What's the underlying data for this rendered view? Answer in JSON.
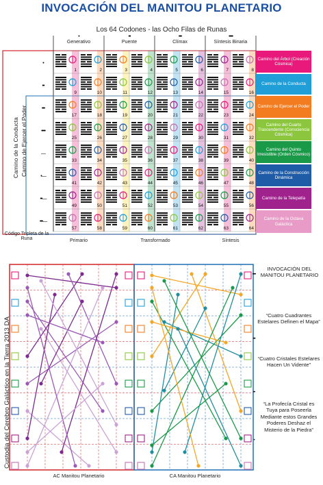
{
  "header": {
    "title": "INVOCACIÓN DEL MANITOU PLANETARIO",
    "subtitle": "Los 64 Codones - las Ocho Filas de Runas"
  },
  "table": {
    "columns": [
      {
        "dots": "•",
        "label": "Generativo"
      },
      {
        "dots": "••",
        "label": "Puente"
      },
      {
        "dots": "•••",
        "label": "Clímax"
      },
      {
        "dots": "••••",
        "label": "Síntesis Binaria"
      }
    ],
    "row_numbers": [
      [
        1,
        2,
        3,
        4,
        5,
        6,
        7,
        8
      ],
      [
        9,
        10,
        11,
        12,
        13,
        14,
        15,
        16
      ],
      [
        17,
        18,
        19,
        20,
        21,
        22,
        23,
        24
      ],
      [
        25,
        26,
        27,
        28,
        29,
        30,
        31,
        32
      ],
      [
        33,
        34,
        35,
        36,
        37,
        38,
        39,
        40
      ],
      [
        41,
        42,
        43,
        44,
        45,
        46,
        47,
        48
      ],
      [
        49,
        50,
        51,
        52,
        53,
        54,
        55,
        56
      ],
      [
        57,
        58,
        59,
        60,
        61,
        62,
        63,
        64
      ]
    ],
    "row_dots": [
      "•",
      "••",
      "•••",
      "••••",
      "—",
      "•—",
      "••—",
      "•••—"
    ],
    "side_paths": [
      {
        "label": "Camino del Árbol (Creación Cósmica)",
        "color": "#e8197a"
      },
      {
        "label": "Camino de la Conducta",
        "color": "#1f9ed8"
      },
      {
        "label": "Camino de Ejercer el Poder",
        "color": "#f47c20"
      },
      {
        "label": "Camino del Cuarto Trascendente (Consciencia Cósmica)",
        "color": "#8cc63e"
      },
      {
        "label": "Camino del Quinto Irresistible (Orden Cósmico)",
        "color": "#1a9a48"
      },
      {
        "label": "Camino de la Construcción Dinámica",
        "color": "#1f5ca8"
      },
      {
        "label": "Camino de la Telepatía",
        "color": "#a0228d"
      },
      {
        "label": "Camino de la Octava Galáctica",
        "color": "#e79bc6"
      }
    ],
    "left_vertical_1": "Camino de la Conducta",
    "left_vertical_2": "Camino de Ejercer el Poder",
    "bottom_left": "Código Tripleta de la Runa",
    "bottom_labels": [
      "Primario",
      "Transformado",
      "Síntesis"
    ]
  },
  "bottom": {
    "vertical_label": "Custodia del Cerebro Galáctico en la Tierra 2013 DA",
    "left_label": "AC Manitou Planetario",
    "right_label": "CA Manitou Planetario",
    "texts": [
      "INVOCACIÓN DEL MANITOU PLANETARIO",
      "“Cuatro Cuadrantes Estelares Definen el Mapa”",
      "“Cuatro Cristales Estelares Hacen Un Vidente”",
      "“La Profecía Cristal es Tuya para Poseerla Mediante estos Grandes Poderes Deshaz el Misterio de la Piedra”"
    ],
    "right_dots": [
      "••••",
      "•••",
      "••",
      "•"
    ]
  },
  "colors": {
    "title": "#1a4fa3",
    "red_frame": "#d2232a",
    "blue_frame": "#1f6fb5",
    "purple": "#7b2a8f",
    "violet": "#9b59b6",
    "lilac": "#c9a3d6",
    "orange": "#f5a623",
    "green": "#1a9a48",
    "teal": "#1f8f9e"
  }
}
